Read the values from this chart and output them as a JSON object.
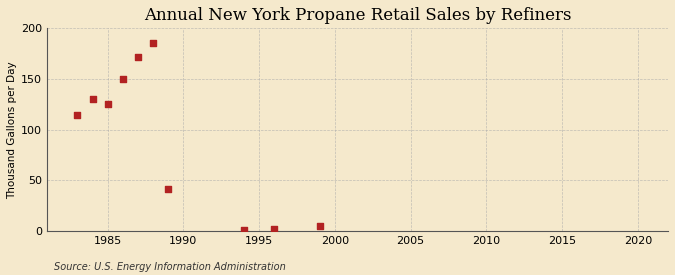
{
  "title": "Annual New York Propane Retail Sales by Refiners",
  "ylabel": "Thousand Gallons per Day",
  "source": "Source: U.S. Energy Information Administration",
  "x_data": [
    1983,
    1984,
    1985,
    1986,
    1987,
    1988,
    1989,
    1994,
    1996,
    1999
  ],
  "y_data": [
    115,
    130,
    125,
    150,
    172,
    185,
    42,
    1,
    2,
    5
  ],
  "xlim": [
    1981,
    2022
  ],
  "ylim": [
    0,
    200
  ],
  "xticks": [
    1985,
    1990,
    1995,
    2000,
    2005,
    2010,
    2015,
    2020
  ],
  "yticks": [
    0,
    50,
    100,
    150,
    200
  ],
  "marker_color": "#b22222",
  "marker_size": 18,
  "background_color": "#f5e9cc",
  "plot_bg_color": "#f5e9cc",
  "grid_color": "#aaaaaa",
  "title_fontsize": 12,
  "label_fontsize": 7.5,
  "tick_fontsize": 8,
  "source_fontsize": 7
}
